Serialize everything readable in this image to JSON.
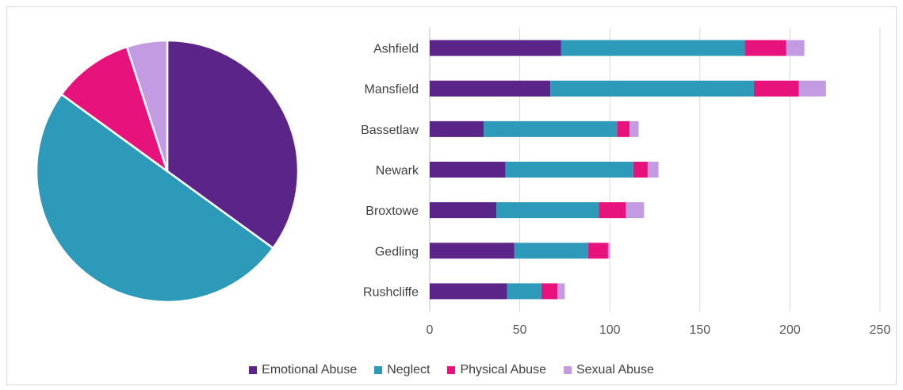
{
  "chart_data": [
    {
      "type": "pie",
      "labels": [
        "Emotional Abuse",
        "Neglect",
        "Physical Abuse",
        "Sexual Abuse"
      ],
      "values": [
        35,
        50,
        10,
        5
      ],
      "colors": [
        "#5b2488",
        "#2e9ab9",
        "#e8127c",
        "#c39be3"
      ]
    },
    {
      "type": "bar",
      "orientation": "horizontal",
      "stacked": true,
      "categories": [
        "Ashfield",
        "Mansfield",
        "Bassetlaw",
        "Newark",
        "Broxtowe",
        "Gedling",
        "Rushcliffe"
      ],
      "series": [
        {
          "name": "Emotional Abuse",
          "color": "#5b2488",
          "values": [
            73,
            67,
            30,
            42,
            37,
            47,
            43
          ]
        },
        {
          "name": "Neglect",
          "color": "#2e9ab9",
          "values": [
            102,
            113,
            74,
            71,
            57,
            41,
            19
          ]
        },
        {
          "name": "Physical Abuse",
          "color": "#e8127c",
          "values": [
            23,
            25,
            7,
            8,
            15,
            11,
            9
          ]
        },
        {
          "name": "Sexual Abuse",
          "color": "#c39be3",
          "values": [
            10,
            15,
            5,
            6,
            10,
            1,
            4
          ]
        }
      ],
      "xlim": [
        0,
        250
      ],
      "xticks": [
        0,
        50,
        100,
        150,
        200,
        250
      ],
      "grid": true,
      "legend_position": "bottom"
    }
  ],
  "legend": {
    "items": [
      {
        "label": "Emotional Abuse",
        "color": "#5b2488"
      },
      {
        "label": "Neglect",
        "color": "#2e9ab9"
      },
      {
        "label": "Physical Abuse",
        "color": "#e8127c"
      },
      {
        "label": "Sexual Abuse",
        "color": "#c39be3"
      }
    ]
  }
}
